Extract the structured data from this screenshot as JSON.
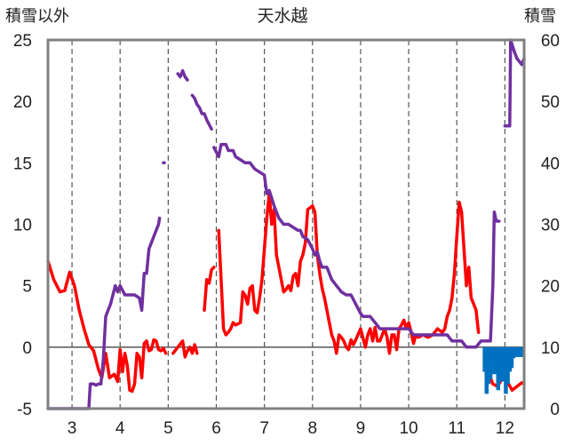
{
  "chart_data": {
    "type": "line",
    "title": "天水越",
    "ylabel_left": "積雪以外",
    "ylabel_right": "積雪",
    "x_ticks": [
      "3",
      "4",
      "5",
      "6",
      "7",
      "8",
      "9",
      "10",
      "11",
      "12"
    ],
    "x_tick_values": [
      3,
      4,
      5,
      6,
      7,
      8,
      9,
      10,
      11,
      12
    ],
    "xlim": [
      2.5,
      12.4
    ],
    "y_left_ticks": [
      "25",
      "20",
      "15",
      "10",
      "5",
      "0",
      "-5"
    ],
    "y_left_tick_values": [
      25,
      20,
      15,
      10,
      5,
      0,
      -5
    ],
    "ylim_left": [
      -5,
      25
    ],
    "y_right_ticks": [
      "60",
      "50",
      "40",
      "30",
      "20",
      "10",
      "0"
    ],
    "y_right_tick_values": [
      60,
      50,
      40,
      30,
      20,
      10,
      0
    ],
    "ylim_right": [
      0,
      60
    ],
    "grid": {
      "vertical": "dashed",
      "horizontal": "none",
      "zero_line": true
    },
    "colors": {
      "red_series": "#ff0000",
      "purple_series": "#7030a0",
      "blue_series": "#0070c0",
      "frame": "#808080"
    },
    "series": [
      {
        "axis": "left",
        "style": "line",
        "color": "#ff0000",
        "points": [
          [
            2.5,
            7
          ],
          [
            2.62,
            5.5
          ],
          [
            2.75,
            4.5
          ],
          [
            2.85,
            4.6
          ],
          [
            2.95,
            6.1
          ],
          [
            3.05,
            5
          ],
          [
            3.15,
            3
          ],
          [
            3.25,
            1.5
          ],
          [
            3.35,
            0.2
          ],
          [
            3.45,
            -0.3
          ],
          [
            3.55,
            -1.8
          ],
          [
            3.62,
            -2.5
          ],
          [
            3.7,
            -0.5
          ],
          [
            3.78,
            -2.5
          ],
          [
            3.88,
            -2.2
          ],
          [
            3.95,
            -2.8
          ],
          [
            4.0,
            -0.2
          ],
          [
            4.05,
            -2
          ],
          [
            4.1,
            -0.5
          ],
          [
            4.15,
            -1.5
          ],
          [
            4.2,
            -3.5
          ],
          [
            4.25,
            -3.6
          ],
          [
            4.3,
            -3
          ],
          [
            4.35,
            -0.5
          ],
          [
            4.4,
            -0.8
          ],
          [
            4.45,
            -2.5
          ],
          [
            4.5,
            0.3
          ],
          [
            4.55,
            0.5
          ],
          [
            4.6,
            -0.3
          ],
          [
            4.65,
            -0.2
          ],
          [
            4.7,
            0.6
          ],
          [
            4.75,
            0.5
          ],
          [
            4.8,
            -0.2
          ],
          [
            4.85,
            -0.3
          ],
          [
            4.9,
            -0.1
          ],
          [
            4.95,
            -0.5
          ],
          null,
          [
            5.1,
            -0.5
          ],
          [
            5.2,
            0
          ],
          [
            5.3,
            0.5
          ],
          [
            5.35,
            -0.8
          ],
          [
            5.4,
            -0.3
          ],
          [
            5.45,
            0
          ],
          [
            5.5,
            -0.5
          ],
          [
            5.55,
            0.2
          ],
          [
            5.6,
            -0.5
          ],
          null,
          [
            5.75,
            3
          ],
          [
            5.8,
            5.5
          ],
          [
            5.85,
            5.2
          ],
          [
            5.9,
            6.3
          ],
          [
            5.95,
            6.5
          ],
          null,
          [
            6.05,
            9.5
          ],
          [
            6.1,
            5.5
          ],
          [
            6.15,
            1.5
          ],
          [
            6.2,
            1
          ],
          [
            6.25,
            1.2
          ],
          [
            6.3,
            1.5
          ],
          [
            6.35,
            2
          ],
          [
            6.4,
            1.8
          ],
          [
            6.5,
            2
          ],
          [
            6.55,
            4.5
          ],
          [
            6.6,
            4.2
          ],
          [
            6.65,
            3.5
          ],
          [
            6.7,
            4.8
          ],
          [
            6.75,
            5
          ],
          [
            6.8,
            3
          ],
          [
            6.85,
            2.8
          ],
          [
            6.9,
            4
          ],
          [
            6.95,
            5.5
          ],
          [
            7.0,
            8
          ],
          [
            7.05,
            10.5
          ],
          [
            7.1,
            12.5
          ],
          [
            7.15,
            10
          ],
          [
            7.2,
            11.2
          ],
          [
            7.25,
            7.5
          ],
          [
            7.3,
            6.5
          ],
          [
            7.35,
            5.5
          ],
          [
            7.4,
            4.5
          ],
          [
            7.45,
            4.7
          ],
          [
            7.5,
            5
          ],
          [
            7.55,
            4.6
          ],
          [
            7.6,
            5.8
          ],
          [
            7.65,
            6
          ],
          [
            7.7,
            5
          ],
          [
            7.75,
            7
          ],
          [
            7.8,
            7.5
          ],
          [
            7.85,
            8.5
          ],
          [
            7.9,
            11.2
          ],
          [
            8.0,
            11.5
          ],
          [
            8.05,
            11
          ],
          [
            8.1,
            7.5
          ],
          [
            8.15,
            6
          ],
          [
            8.2,
            4.8
          ],
          [
            8.25,
            4
          ],
          [
            8.3,
            3
          ],
          [
            8.35,
            2
          ],
          [
            8.4,
            1
          ],
          [
            8.45,
            0.5
          ],
          [
            8.5,
            -0.5
          ],
          [
            8.55,
            1
          ],
          [
            8.6,
            0.8
          ],
          [
            8.65,
            0.5
          ],
          [
            8.7,
            0
          ],
          [
            8.75,
            -0.2
          ],
          [
            8.8,
            0.6
          ],
          [
            8.85,
            0.2
          ],
          [
            8.9,
            0.6
          ],
          [
            9.0,
            1.5
          ],
          [
            9.1,
            0
          ],
          [
            9.15,
            1
          ],
          [
            9.2,
            1.5
          ],
          [
            9.25,
            0.5
          ],
          [
            9.3,
            1.6
          ],
          [
            9.35,
            0.5
          ],
          [
            9.4,
            0.5
          ],
          [
            9.5,
            1.5
          ],
          [
            9.55,
            0.8
          ],
          [
            9.6,
            -0.5
          ],
          [
            9.65,
            1
          ],
          [
            9.7,
            1
          ],
          [
            9.75,
            -0.2
          ],
          [
            9.8,
            1.5
          ],
          [
            9.85,
            1.8
          ],
          [
            9.9,
            2.2
          ],
          [
            9.95,
            1.5
          ],
          [
            10.0,
            2
          ],
          [
            10.05,
            1.2
          ],
          [
            10.1,
            0.3
          ],
          [
            10.15,
            1
          ],
          [
            10.2,
            0.8
          ],
          [
            10.3,
            1
          ],
          [
            10.4,
            0.8
          ],
          [
            10.5,
            1
          ],
          [
            10.6,
            1.5
          ],
          [
            10.7,
            1.2
          ],
          [
            10.75,
            1.5
          ],
          [
            10.8,
            2.5
          ],
          [
            10.85,
            3
          ],
          [
            10.9,
            4
          ],
          [
            10.95,
            6
          ],
          [
            11.0,
            9
          ],
          [
            11.05,
            11.8
          ],
          [
            11.1,
            11
          ],
          [
            11.15,
            8
          ],
          [
            11.2,
            5
          ],
          [
            11.25,
            6.5
          ],
          [
            11.3,
            4
          ],
          [
            11.35,
            3.5
          ],
          [
            11.4,
            3
          ],
          [
            11.45,
            1.2
          ],
          null,
          [
            11.58,
            -0.8
          ],
          [
            11.62,
            -2.3
          ],
          [
            11.7,
            -2.5
          ],
          [
            11.75,
            -3
          ],
          [
            11.85,
            -3.2
          ],
          [
            11.95,
            -2.5
          ],
          [
            12.05,
            -2.8
          ],
          [
            12.15,
            -3.5
          ],
          [
            12.25,
            -3.2
          ],
          [
            12.35,
            -2.9
          ],
          [
            12.4,
            -3
          ]
        ]
      },
      {
        "axis": "right",
        "style": "line",
        "color": "#7030a0",
        "points": [
          [
            2.5,
            0
          ],
          [
            3.35,
            0
          ],
          [
            3.38,
            4
          ],
          [
            3.45,
            4
          ],
          [
            3.5,
            3.8
          ],
          [
            3.55,
            4
          ],
          [
            3.6,
            4
          ],
          [
            3.65,
            8
          ],
          [
            3.7,
            15
          ],
          [
            3.8,
            17
          ],
          [
            3.9,
            20
          ],
          [
            3.95,
            19
          ],
          [
            4.0,
            20
          ],
          [
            4.1,
            18.5
          ],
          [
            4.2,
            18.5
          ],
          [
            4.3,
            18.5
          ],
          [
            4.4,
            18
          ],
          [
            4.45,
            16
          ],
          [
            4.5,
            22
          ],
          [
            4.55,
            22
          ],
          [
            4.6,
            26
          ],
          [
            4.7,
            28
          ],
          [
            4.8,
            30
          ],
          [
            4.82,
            31
          ],
          null,
          [
            4.9,
            40
          ],
          [
            4.92,
            40
          ],
          null,
          [
            5.2,
            54.5
          ],
          [
            5.25,
            54
          ],
          [
            5.3,
            55
          ],
          [
            5.35,
            54
          ],
          [
            5.4,
            53.5
          ],
          null,
          [
            5.5,
            51
          ],
          [
            5.55,
            50.5
          ],
          [
            5.6,
            49.5
          ],
          [
            5.65,
            49
          ],
          [
            5.7,
            48
          ],
          [
            5.75,
            48
          ],
          [
            5.8,
            47
          ],
          [
            5.9,
            45.5
          ],
          null,
          [
            5.95,
            42.5
          ],
          [
            6.05,
            41
          ],
          [
            6.1,
            43
          ],
          [
            6.2,
            43
          ],
          [
            6.25,
            42
          ],
          [
            6.35,
            42
          ],
          [
            6.4,
            41
          ],
          [
            6.5,
            40.5
          ],
          [
            6.6,
            40
          ],
          [
            6.7,
            40
          ],
          [
            6.8,
            39
          ],
          [
            6.9,
            38.5
          ],
          [
            7.0,
            38
          ],
          [
            7.05,
            35
          ],
          [
            7.1,
            35.5
          ],
          [
            7.2,
            33
          ],
          [
            7.3,
            31
          ],
          [
            7.4,
            30
          ],
          [
            7.5,
            30
          ],
          [
            7.6,
            29.5
          ],
          [
            7.7,
            29
          ],
          [
            7.75,
            29
          ],
          [
            7.8,
            28
          ],
          [
            7.9,
            27.5
          ],
          [
            8.0,
            26
          ],
          [
            8.05,
            25
          ],
          [
            8.1,
            25.5
          ],
          [
            8.15,
            24
          ],
          [
            8.2,
            23
          ],
          [
            8.3,
            23
          ],
          [
            8.4,
            21
          ],
          [
            8.5,
            20
          ],
          [
            8.6,
            19
          ],
          [
            8.7,
            18.5
          ],
          [
            8.8,
            18.5
          ],
          [
            8.9,
            17
          ],
          [
            9.0,
            15.5
          ],
          [
            9.05,
            15
          ],
          [
            9.2,
            15
          ],
          [
            9.3,
            14
          ],
          [
            9.4,
            13
          ],
          [
            9.5,
            13
          ],
          [
            10.0,
            13
          ],
          [
            10.1,
            12
          ],
          [
            10.2,
            12
          ],
          [
            10.6,
            12
          ],
          [
            10.8,
            12
          ],
          [
            10.9,
            11
          ],
          [
            11.1,
            11
          ],
          [
            11.2,
            10
          ],
          [
            11.4,
            10
          ],
          [
            11.5,
            11
          ],
          [
            11.6,
            11
          ],
          [
            11.7,
            11
          ],
          [
            11.75,
            20
          ],
          [
            11.78,
            32
          ],
          [
            11.82,
            30.5
          ],
          [
            11.88,
            30.5
          ],
          null,
          [
            12.0,
            46
          ],
          [
            12.1,
            46
          ],
          [
            12.12,
            60
          ],
          [
            12.2,
            58
          ],
          [
            12.25,
            57
          ],
          [
            12.35,
            56
          ],
          [
            12.4,
            57
          ]
        ]
      },
      {
        "axis": "left",
        "style": "bar",
        "color": "#0070c0",
        "points": [
          [
            11.58,
            -2
          ],
          [
            11.62,
            -3.8
          ],
          [
            11.66,
            -3
          ],
          [
            11.7,
            -2.6
          ],
          [
            11.74,
            -1.2
          ],
          [
            11.78,
            -2.2
          ],
          [
            11.82,
            -1.5
          ],
          [
            11.86,
            -3.5
          ],
          [
            11.9,
            -2.8
          ],
          [
            11.94,
            -2.8
          ],
          [
            11.98,
            -1.8
          ],
          [
            12.02,
            -3.8
          ],
          [
            12.06,
            -3
          ],
          [
            12.1,
            -2
          ],
          [
            12.14,
            -1.7
          ],
          [
            12.18,
            -0.9
          ],
          [
            12.22,
            -0.7
          ],
          [
            12.26,
            -0.8
          ],
          [
            12.3,
            -0.7
          ],
          [
            12.34,
            -0.8
          ]
        ]
      }
    ]
  }
}
